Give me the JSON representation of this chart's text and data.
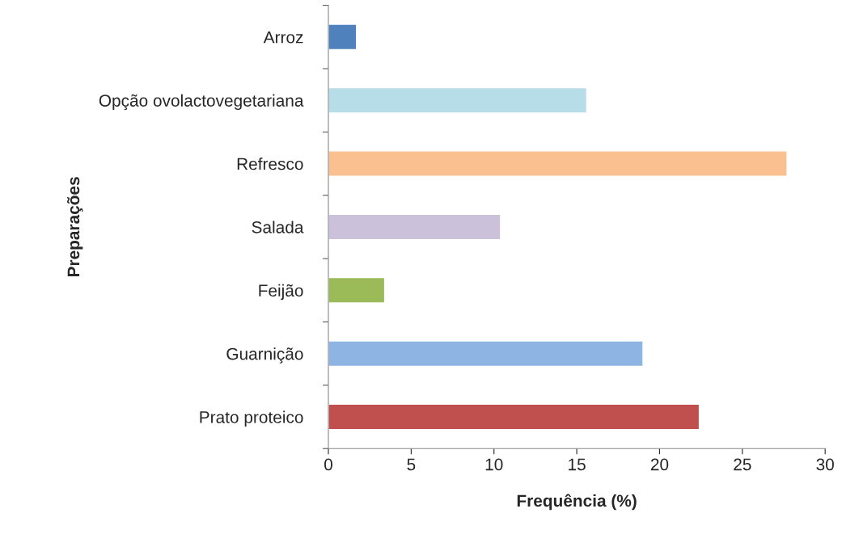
{
  "chart_data": {
    "type": "bar",
    "orientation": "horizontal",
    "xlabel": "Frequência (%)",
    "ylabel": "Preparações",
    "categories": [
      "Arroz",
      "Opção ovolactovegetariana",
      "Refresco",
      "Salada",
      "Feijão",
      "Guarnição",
      "Prato proteico"
    ],
    "values": [
      1.7,
      15.6,
      27.7,
      10.4,
      3.4,
      19.0,
      22.4
    ],
    "colors": [
      "#4f81bd",
      "#b7dee8",
      "#fac090",
      "#ccc1da",
      "#9bbb59",
      "#8eb4e3",
      "#c0504d"
    ],
    "xlim": [
      0,
      30
    ],
    "xticks": [
      0,
      5,
      10,
      15,
      20,
      25,
      30
    ],
    "grid": false,
    "legend": false
  }
}
